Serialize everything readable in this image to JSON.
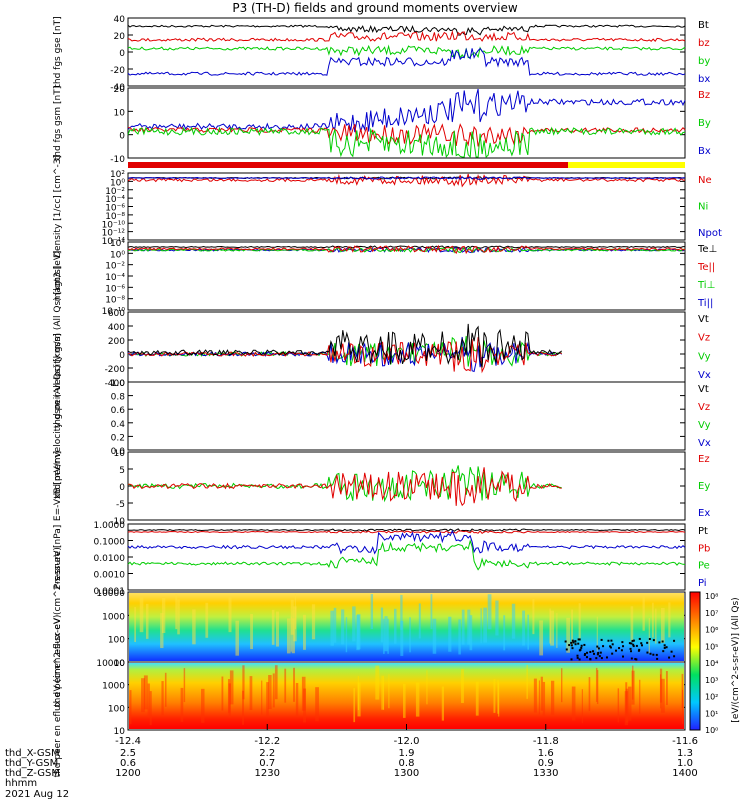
{
  "title": "P3 (TH-D) fields and ground moments overview",
  "colors": {
    "black": "#000000",
    "red": "#e00000",
    "green": "#00cc00",
    "blue": "#0000cc",
    "yellow": "#ffff00"
  },
  "x_axis": {
    "tick_labels": [
      "-12.4",
      "-12.2",
      "-12.0",
      "-11.8",
      "-11.6"
    ],
    "rows": [
      {
        "label": "thd_X-GSM",
        "values": [
          "2.5",
          "2.2",
          "1.9",
          "1.6",
          "1.3"
        ]
      },
      {
        "label": "thd_Y-GSM",
        "values": [
          "0.6",
          "0.7",
          "0.8",
          "0.9",
          "1.0"
        ]
      },
      {
        "label": "thd_Z-GSM",
        "values": [
          "1200",
          "1230",
          "1300",
          "1330",
          "1400"
        ]
      },
      {
        "label": "hhmm",
        "values": []
      }
    ],
    "date": "2021 Aug 12"
  },
  "colorbar": {
    "label": "[eV/(cm^2-s-sr-eV)] (All Qs)",
    "labels": [
      "10⁸",
      "10⁷",
      "10⁶",
      "10⁵",
      "10⁴",
      "10³",
      "10²",
      "10¹",
      "10⁰"
    ]
  },
  "chart_data": [
    {
      "type": "line",
      "ylabel": "thd fgs gse [nT]",
      "ylim": [
        -40,
        40
      ],
      "tick_labels": [
        "40",
        "20",
        "0",
        "-20",
        "-40"
      ],
      "legend": [
        "Bt",
        "bz",
        "by",
        "bx"
      ]
    },
    {
      "type": "line",
      "ylabel": "thd fgs gsm [nT]",
      "ylim": [
        -15,
        20
      ],
      "tick_labels": [
        "20",
        "10",
        "0",
        "-10"
      ],
      "legend": [
        "Bz",
        "By",
        "Bx"
      ]
    },
    {
      "type": "line",
      "ylabel": "Density [1/cc] [cm^-3]",
      "scale": "log",
      "tick_labels": [
        "10²",
        "10⁰",
        "10⁻²",
        "10⁻⁴",
        "10⁻⁶",
        "10⁻⁸",
        "10⁻¹⁰",
        "10⁻¹²",
        "10⁻¹⁴"
      ],
      "legend": [
        "Ne",
        "Ni",
        "Npot"
      ]
    },
    {
      "type": "line",
      "ylabel": "magt3 [eV]",
      "scale": "log",
      "tick_labels": [
        "10⁴",
        "10⁰",
        "10⁻²",
        "10⁻⁴",
        "10⁻⁶",
        "10⁻⁸",
        "10⁻¹⁰"
      ],
      "legend": [
        "Te⊥",
        "Te||",
        "Ti⊥",
        "Ti||"
      ]
    },
    {
      "type": "line",
      "ylabel": "thd peir velocity gsm (All Qs) [km/s]",
      "ylim": [
        -400,
        600
      ],
      "tick_labels": [
        "600",
        "400",
        "200",
        "0",
        "-200",
        "-400"
      ],
      "legend": [
        "Vt",
        "Vz",
        "Vy",
        "Vx"
      ]
    },
    {
      "type": "line",
      "ylabel": "thd peer velocity gsm (All Qs) [km/s]",
      "ylim": [
        0,
        1
      ],
      "tick_labels": [
        "1.0",
        "0.8",
        "0.6",
        "0.4",
        "0.2",
        "0.0"
      ],
      "legend": [
        "Vt",
        "Vz",
        "Vy",
        "Vx"
      ]
    },
    {
      "type": "line",
      "ylabel": "E=-VxB [mV/m]",
      "ylim": [
        -10,
        10
      ],
      "tick_labels": [
        "10",
        "5",
        "0",
        "-5",
        "-10"
      ],
      "legend": [
        "Ez",
        "Ey",
        "Ex"
      ]
    },
    {
      "type": "line",
      "ylabel": "Pressure [nPa]",
      "scale": "log",
      "tick_labels": [
        "1.0000",
        "0.1000",
        "0.0100",
        "0.0010",
        "0.0001"
      ],
      "legend": [
        "Pt",
        "Pb",
        "Pe",
        "Pi"
      ]
    },
    {
      "type": "heatmap",
      "ylabel": "thd peir en eflux eV (cm^2-s-sr-eV)",
      "tick_labels": [
        "10000",
        "1000",
        "100",
        "10"
      ]
    },
    {
      "type": "heatmap",
      "ylabel": "thd peer en eflux eV (cm^2-s-sr-eV)",
      "tick_labels": [
        "10000",
        "1000",
        "100",
        "10"
      ]
    }
  ]
}
